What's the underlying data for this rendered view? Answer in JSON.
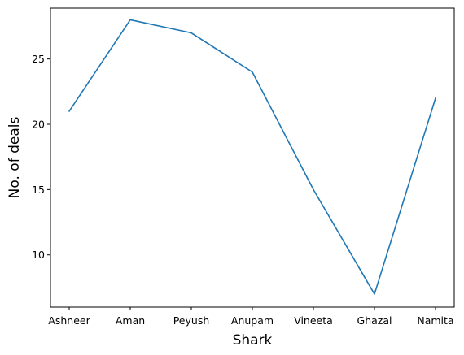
{
  "chart_data": {
    "type": "line",
    "title": "",
    "xlabel": "Shark",
    "ylabel": "No. of deals",
    "categories": [
      "Ashneer",
      "Aman",
      "Peyush",
      "Anupam",
      "Vineeta",
      "Ghazal",
      "Namita"
    ],
    "series": [
      {
        "values": [
          21,
          28,
          27,
          24,
          15,
          7,
          22
        ],
        "color": "#1f77b4"
      }
    ],
    "ylim": [
      6.0,
      28.9
    ],
    "yticks": [
      10,
      15,
      20,
      25
    ],
    "grid": false,
    "legend": "none"
  }
}
